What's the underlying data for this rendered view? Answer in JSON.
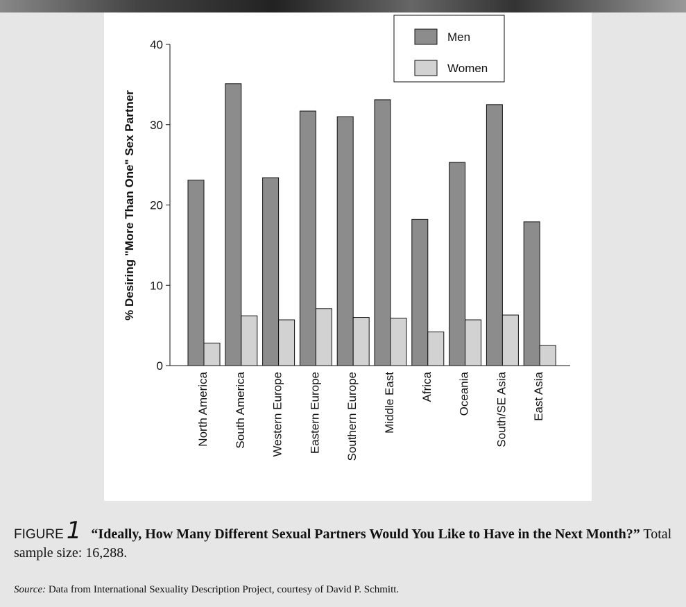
{
  "chart_data": {
    "type": "bar",
    "y_label": "% Desiring \"More Than One\" Sex Partner",
    "categories": [
      "North America",
      "South America",
      "Western Europe",
      "Eastern Europe",
      "Southern Europe",
      "Middle East",
      "Africa",
      "Oceania",
      "South/SE Asia",
      "East Asia"
    ],
    "series": [
      {
        "name": "Men",
        "color": "#8c8c8c",
        "values": [
          23.1,
          35.1,
          23.4,
          31.7,
          31.0,
          33.1,
          18.2,
          25.3,
          32.5,
          17.9
        ]
      },
      {
        "name": "Women",
        "color": "#d2d2d2",
        "values": [
          2.8,
          6.2,
          5.7,
          7.1,
          6.0,
          5.9,
          4.2,
          5.7,
          6.3,
          2.5
        ]
      }
    ],
    "ylim": [
      0,
      40
    ],
    "yticks": [
      0,
      10,
      20,
      30,
      40
    ],
    "grid": false,
    "legend": "top-right",
    "figure_label": "FIGURE",
    "figure_number": "1",
    "caption_title": "“Ideally, How Many Different Sexual Partners Would You Like to Have in the Next Month?”",
    "caption_text": "Total sample size: 16,288.",
    "source_label": "Source:",
    "source_text": "Data from International Sexuality Description Project, courtesy of David P. Schmitt."
  }
}
